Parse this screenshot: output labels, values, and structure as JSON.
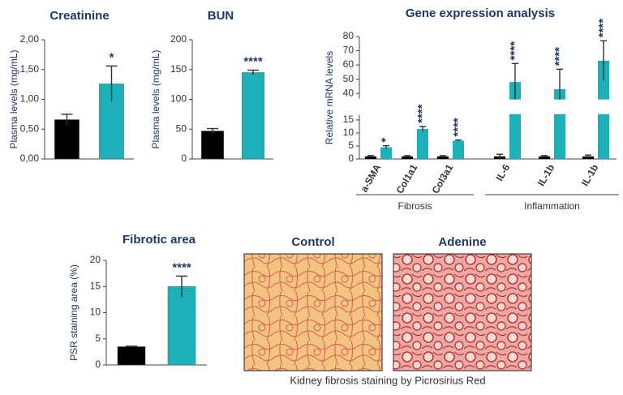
{
  "chart_data": [
    {
      "type": "bar",
      "title": "Creatinine",
      "ylabel": "Plasma levels (mg/mL)",
      "categories": [
        null,
        null
      ],
      "values": [
        0.66,
        1.26
      ],
      "errors": [
        0.09,
        0.3
      ],
      "colors": [
        "#000000",
        "#1cb0b8"
      ],
      "annotations": [
        null,
        "*"
      ],
      "ylim": [
        0,
        2
      ],
      "yticks": [
        {
          "value": 0,
          "label": "0,00"
        },
        {
          "value": 0.5,
          "label": "0,50"
        },
        {
          "value": 1,
          "label": "1,00"
        },
        {
          "value": 1.5,
          "label": "1,50"
        },
        {
          "value": 2,
          "label": "2,00"
        }
      ]
    },
    {
      "type": "bar",
      "title": "BUN",
      "ylabel": "Plasma levels (mg/mL)",
      "categories": [
        null,
        null
      ],
      "values": [
        47,
        145
      ],
      "errors": [
        4,
        4
      ],
      "colors": [
        "#000000",
        "#1cb0b8"
      ],
      "annotations": [
        null,
        "****"
      ],
      "ylim": [
        0,
        200
      ],
      "yticks": [
        0,
        50,
        100,
        150,
        200
      ]
    },
    {
      "type": "grouped_bar",
      "title": "Gene expression analysis",
      "ylabel": "Relative mRNA levels",
      "categories": [
        "a-SMA",
        "Col1a1",
        "Col3a1",
        "IL-6",
        "IL-1b",
        "IL-1b"
      ],
      "series": [
        {
          "color": "#000000",
          "values": [
            1,
            1,
            1,
            1,
            1,
            1
          ],
          "errors": [
            0.3,
            0.3,
            0.3,
            0.8,
            0.3,
            0.5
          ]
        },
        {
          "color": "#1cb0b8",
          "values": [
            4.5,
            11.5,
            7,
            48,
            43,
            63
          ],
          "errors": [
            0.6,
            1,
            0.3,
            13,
            14,
            14
          ]
        }
      ],
      "annotations": [
        "*",
        "****",
        "****",
        "****",
        "****",
        "****"
      ],
      "groups": [
        {
          "label": "Fibrosis",
          "count": 3
        },
        {
          "label": "Inflammation",
          "count": 3
        }
      ],
      "ylim": [
        0,
        80
      ],
      "axis_break": [
        16,
        38
      ],
      "yticks": [
        0,
        5,
        10,
        15,
        40,
        50,
        60,
        70,
        80
      ]
    },
    {
      "type": "bar",
      "title": "Fibrotic area",
      "ylabel": "PSR staining area (%)",
      "categories": [
        null,
        null
      ],
      "values": [
        3.5,
        15
      ],
      "errors": [
        0.1,
        2
      ],
      "colors": [
        "#000000",
        "#1cb0b8"
      ],
      "annotations": [
        null,
        "****"
      ],
      "ylim": [
        0,
        20
      ],
      "yticks": [
        0,
        5,
        10,
        15,
        20
      ]
    }
  ],
  "figure": {
    "images": [
      {
        "title": "Control"
      },
      {
        "title": "Adenine"
      }
    ],
    "caption": "Kidney fibrosis staining by Picrosirius Red"
  }
}
